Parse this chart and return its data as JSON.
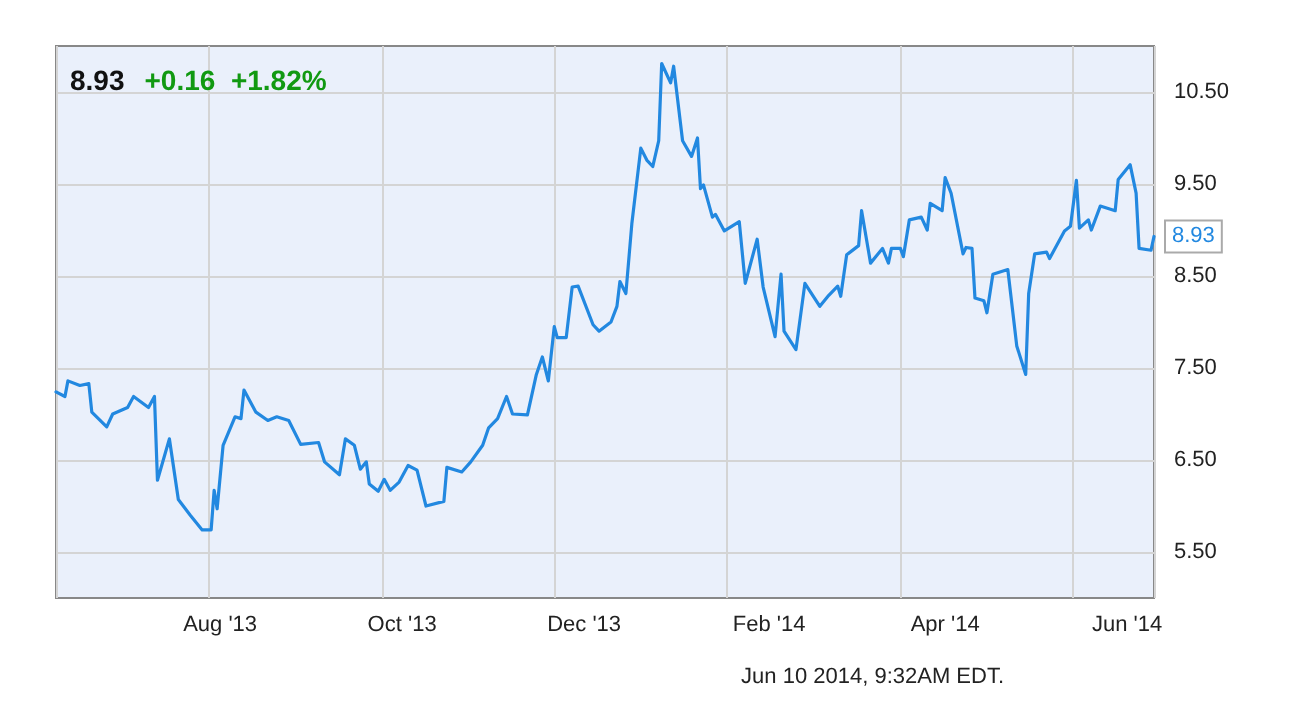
{
  "chart_data": {
    "type": "line",
    "title": "8.93",
    "subtitle": "+0.16  +1.82%",
    "annotations": [
      {
        "text": "8.93",
        "x": "2014-06-10",
        "y": 8.93
      },
      "Jun 10 2014, 9:32AM EDT."
    ],
    "x": [
      "2013-06-07",
      "2013-06-10",
      "2013-06-11",
      "2013-06-15",
      "2013-06-18",
      "2013-06-19",
      "2013-06-24",
      "2013-06-26",
      "2013-07-01",
      "2013-07-03",
      "2013-07-08",
      "2013-07-10",
      "2013-07-11",
      "2013-07-15",
      "2013-07-18",
      "2013-07-22",
      "2013-07-26",
      "2013-07-29",
      "2013-07-30",
      "2013-07-31",
      "2013-08-02",
      "2013-08-06",
      "2013-08-08",
      "2013-08-09",
      "2013-08-13",
      "2013-08-17",
      "2013-08-20",
      "2013-08-24",
      "2013-08-28",
      "2013-09-03",
      "2013-09-05",
      "2013-09-10",
      "2013-09-12",
      "2013-09-15",
      "2013-09-17",
      "2013-09-19",
      "2013-09-20",
      "2013-09-23",
      "2013-09-25",
      "2013-09-27",
      "2013-09-30",
      "2013-10-03",
      "2013-10-06",
      "2013-10-09",
      "2013-10-15",
      "2013-10-16",
      "2013-10-21",
      "2013-10-24",
      "2013-10-28",
      "2013-10-30",
      "2013-11-02",
      "2013-11-05",
      "2013-11-07",
      "2013-11-12",
      "2013-11-15",
      "2013-11-17",
      "2013-11-19",
      "2013-11-21",
      "2013-11-22",
      "2013-11-25",
      "2013-11-27",
      "2013-11-29",
      "2013-12-04",
      "2013-12-06",
      "2013-12-10",
      "2013-12-12",
      "2013-12-13",
      "2013-12-15",
      "2013-12-17",
      "2013-12-20",
      "2013-12-22",
      "2013-12-24",
      "2013-12-26",
      "2013-12-27",
      "2013-12-30",
      "2013-12-31",
      "2014-01-03",
      "2014-01-06",
      "2014-01-08",
      "2014-01-09",
      "2014-01-10",
      "2014-01-13",
      "2014-01-14",
      "2014-01-17",
      "2014-01-22",
      "2014-01-24",
      "2014-01-28",
      "2014-01-30",
      "2014-02-03",
      "2014-02-05",
      "2014-02-06",
      "2014-02-10",
      "2014-02-13",
      "2014-02-18",
      "2014-02-21",
      "2014-02-24",
      "2014-02-25",
      "2014-02-27",
      "2014-03-03",
      "2014-03-04",
      "2014-03-07",
      "2014-03-11",
      "2014-03-13",
      "2014-03-14",
      "2014-03-17",
      "2014-03-18",
      "2014-03-20",
      "2014-03-24",
      "2014-03-26",
      "2014-03-27",
      "2014-03-31",
      "2014-04-01",
      "2014-04-03",
      "2014-04-07",
      "2014-04-08",
      "2014-04-10",
      "2014-04-11",
      "2014-04-14",
      "2014-04-15",
      "2014-04-17",
      "2014-04-22",
      "2014-04-25",
      "2014-04-28",
      "2014-04-29",
      "2014-05-01",
      "2014-05-05",
      "2014-05-06",
      "2014-05-11",
      "2014-05-13",
      "2014-05-15",
      "2014-05-16",
      "2014-05-19",
      "2014-05-20",
      "2014-05-23",
      "2014-05-28",
      "2014-05-29",
      "2014-06-02",
      "2014-06-04",
      "2014-06-05",
      "2014-06-09",
      "2014-06-10"
    ],
    "series": [
      {
        "color": "#2288e0",
        "values": [
          7.24,
          7.19,
          7.36,
          7.31,
          7.33,
          7.02,
          6.86,
          7.0,
          7.07,
          7.19,
          7.07,
          7.19,
          6.28,
          6.73,
          6.07,
          5.9,
          5.74,
          5.74,
          6.17,
          5.97,
          6.66,
          6.97,
          6.95,
          7.26,
          7.02,
          6.93,
          6.97,
          6.93,
          6.67,
          6.69,
          6.48,
          6.34,
          6.73,
          6.66,
          6.4,
          6.48,
          6.24,
          6.16,
          6.29,
          6.17,
          6.26,
          6.44,
          6.39,
          6.0,
          6.05,
          6.42,
          6.37,
          6.48,
          6.66,
          6.85,
          6.95,
          7.19,
          7.0,
          6.99,
          7.43,
          7.62,
          7.36,
          7.95,
          7.83,
          7.83,
          8.38,
          8.39,
          7.97,
          7.9,
          8.0,
          8.17,
          8.44,
          8.31,
          9.07,
          9.89,
          9.76,
          9.69,
          9.97,
          10.81,
          10.6,
          10.78,
          9.97,
          9.8,
          10.0,
          9.45,
          9.49,
          9.14,
          9.17,
          8.99,
          9.09,
          8.42,
          8.9,
          8.38,
          7.84,
          8.52,
          7.9,
          7.7,
          8.42,
          8.17,
          8.29,
          8.39,
          8.28,
          8.73,
          8.83,
          9.21,
          8.64,
          8.8,
          8.64,
          8.8,
          8.8,
          8.71,
          9.11,
          9.14,
          9.0,
          9.29,
          9.21,
          9.57,
          9.4,
          8.74,
          8.81,
          8.8,
          8.26,
          8.23,
          8.1,
          8.52,
          8.57,
          7.74,
          7.43,
          8.31,
          8.74,
          8.76,
          8.69,
          8.99,
          9.04,
          9.54,
          9.02,
          9.11,
          9.0,
          9.26,
          9.21,
          9.55,
          9.71,
          9.4,
          8.8,
          8.78,
          8.93
        ]
      }
    ],
    "xlim": [
      "2013-06-07",
      "2014-06-10"
    ],
    "xticks": [
      {
        "value": "2013-08-01",
        "label": "Aug '13"
      },
      {
        "value": "2013-10-01",
        "label": "Oct '13"
      },
      {
        "value": "2013-12-01",
        "label": "Dec '13"
      },
      {
        "value": "2014-02-01",
        "label": "Feb '14"
      },
      {
        "value": "2014-04-01",
        "label": "Apr '14"
      },
      {
        "value": "2014-06-01",
        "label": "Jun '14"
      }
    ],
    "ylim": [
      5,
      11
    ],
    "yticks": [
      {
        "value": 5.5,
        "label": "5.50"
      },
      {
        "value": 6.5,
        "label": "6.50"
      },
      {
        "value": 7.5,
        "label": "7.50"
      },
      {
        "value": 8.5,
        "label": "8.50"
      },
      {
        "value": 9.5,
        "label": "9.50"
      },
      {
        "value": 10.5,
        "label": "10.50"
      }
    ],
    "grid": true,
    "marker": "none",
    "line_style": "solid"
  }
}
